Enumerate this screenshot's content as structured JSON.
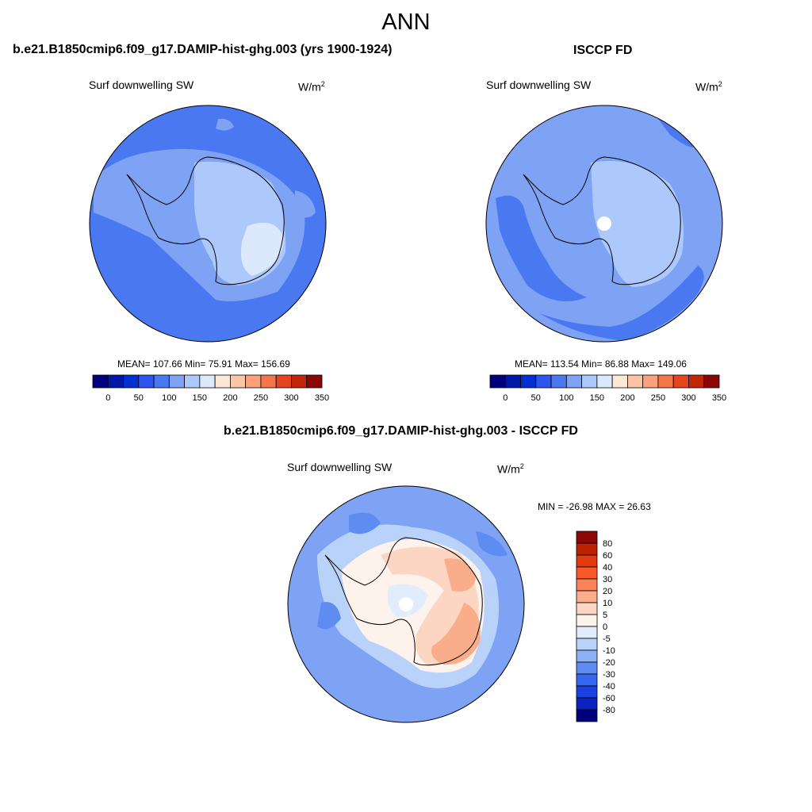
{
  "figure": {
    "title": "ANN"
  },
  "colors": {
    "outline": "#000000",
    "coast": "#000000"
  },
  "chart_data": [
    {
      "type": "heatmap",
      "projection": "south-polar-stereographic",
      "title": "b.e21.B1850cmip6.f09_g17.DAMIP-hist-ghg.003 (yrs 1900-1924)",
      "variable": "Surf downwelling SW",
      "units": "W/m",
      "units_sup": "2",
      "stats": {
        "mean": "107.66",
        "min": "75.91",
        "max": "156.69",
        "text": "MEAN= 107.66  Min=  75.91  Max= 156.69"
      },
      "colorbar": {
        "orientation": "horizontal",
        "levels": [
          0,
          50,
          100,
          150,
          200,
          250,
          300,
          350
        ],
        "tick_labels": [
          "0",
          "50",
          "100",
          "150",
          "200",
          "250",
          "300",
          "350"
        ],
        "colors": [
          "#00007f",
          "#0018a8",
          "#0030d0",
          "#2e55f0",
          "#4a78f0",
          "#7ea2f4",
          "#adc8fa",
          "#dce9fc",
          "#fde8d8",
          "#fdc5a8",
          "#fba27c",
          "#f47548",
          "#e64420",
          "#c22508",
          "#8d0606"
        ]
      }
    },
    {
      "type": "heatmap",
      "projection": "south-polar-stereographic",
      "title": "ISCCP FD",
      "variable": "Surf downwelling SW",
      "units": "W/m",
      "units_sup": "2",
      "stats": {
        "mean": "113.54",
        "min": "86.88",
        "max": "149.06",
        "text": "MEAN= 113.54  Min=  86.88  Max= 149.06"
      },
      "colorbar": {
        "orientation": "horizontal",
        "levels": [
          0,
          50,
          100,
          150,
          200,
          250,
          300,
          350
        ],
        "tick_labels": [
          "0",
          "50",
          "100",
          "150",
          "200",
          "250",
          "300",
          "350"
        ],
        "colors": [
          "#00007f",
          "#0018a8",
          "#0030d0",
          "#2e55f0",
          "#4a78f0",
          "#7ea2f4",
          "#adc8fa",
          "#dce9fc",
          "#fde8d8",
          "#fdc5a8",
          "#fba27c",
          "#f47548",
          "#e64420",
          "#c22508",
          "#8d0606"
        ]
      }
    },
    {
      "type": "heatmap",
      "projection": "south-polar-stereographic",
      "title": "b.e21.B1850cmip6.f09_g17.DAMIP-hist-ghg.003 - ISCCP FD",
      "variable": "Surf downwelling SW",
      "units": "W/m",
      "units_sup": "2",
      "stats": {
        "min": "-26.98",
        "max": "26.63",
        "text": "MIN = -26.98 MAX =  26.63"
      },
      "colorbar": {
        "orientation": "vertical",
        "levels": [
          80,
          60,
          40,
          30,
          20,
          10,
          5,
          0,
          -5,
          -10,
          -20,
          -30,
          -40,
          -60,
          -80
        ],
        "tick_labels": [
          "80",
          "60",
          "40",
          "30",
          "20",
          "10",
          "5",
          "0",
          "-5",
          "-10",
          "-20",
          "-30",
          "-40",
          "-60",
          "-80"
        ],
        "colors": [
          "#8d0606",
          "#bb2202",
          "#e23a0c",
          "#f95a28",
          "#fa8458",
          "#f9ad8a",
          "#fcd6c2",
          "#fdf2ec",
          "#e1edfc",
          "#b8d2fa",
          "#8cb0f5",
          "#5e8cf0",
          "#3566ef",
          "#1a40e0",
          "#0a22bf",
          "#00007f"
        ]
      }
    }
  ]
}
